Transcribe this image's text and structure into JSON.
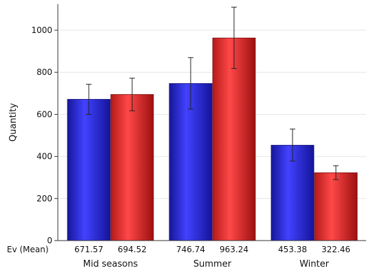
{
  "chart_data": {
    "type": "bar",
    "title": "",
    "xlabel": "",
    "ylabel": "Quantity",
    "ylim": [
      0,
      1100
    ],
    "yticks": [
      0,
      200,
      400,
      600,
      800,
      1000
    ],
    "categories": [
      "Mid seasons",
      "Summer",
      "Winter"
    ],
    "series": [
      {
        "values": [
          671.57,
          746.74,
          453.38
        ],
        "error_low": [
          600,
          625,
          378
        ],
        "error_high": [
          743,
          870,
          530
        ],
        "color": "#3333ff"
      },
      {
        "values": [
          694.52,
          963.24,
          322.46
        ],
        "error_low": [
          617,
          818,
          290
        ],
        "error_high": [
          772,
          1110,
          356
        ],
        "color": "#ff3333"
      }
    ],
    "table_row_label": "Ev (Mean)",
    "table_values": [
      [
        "671.57",
        "694.52"
      ],
      [
        "746.74",
        "963.24"
      ],
      [
        "453.38",
        "322.46"
      ]
    ],
    "grid": true,
    "legend": "none"
  }
}
